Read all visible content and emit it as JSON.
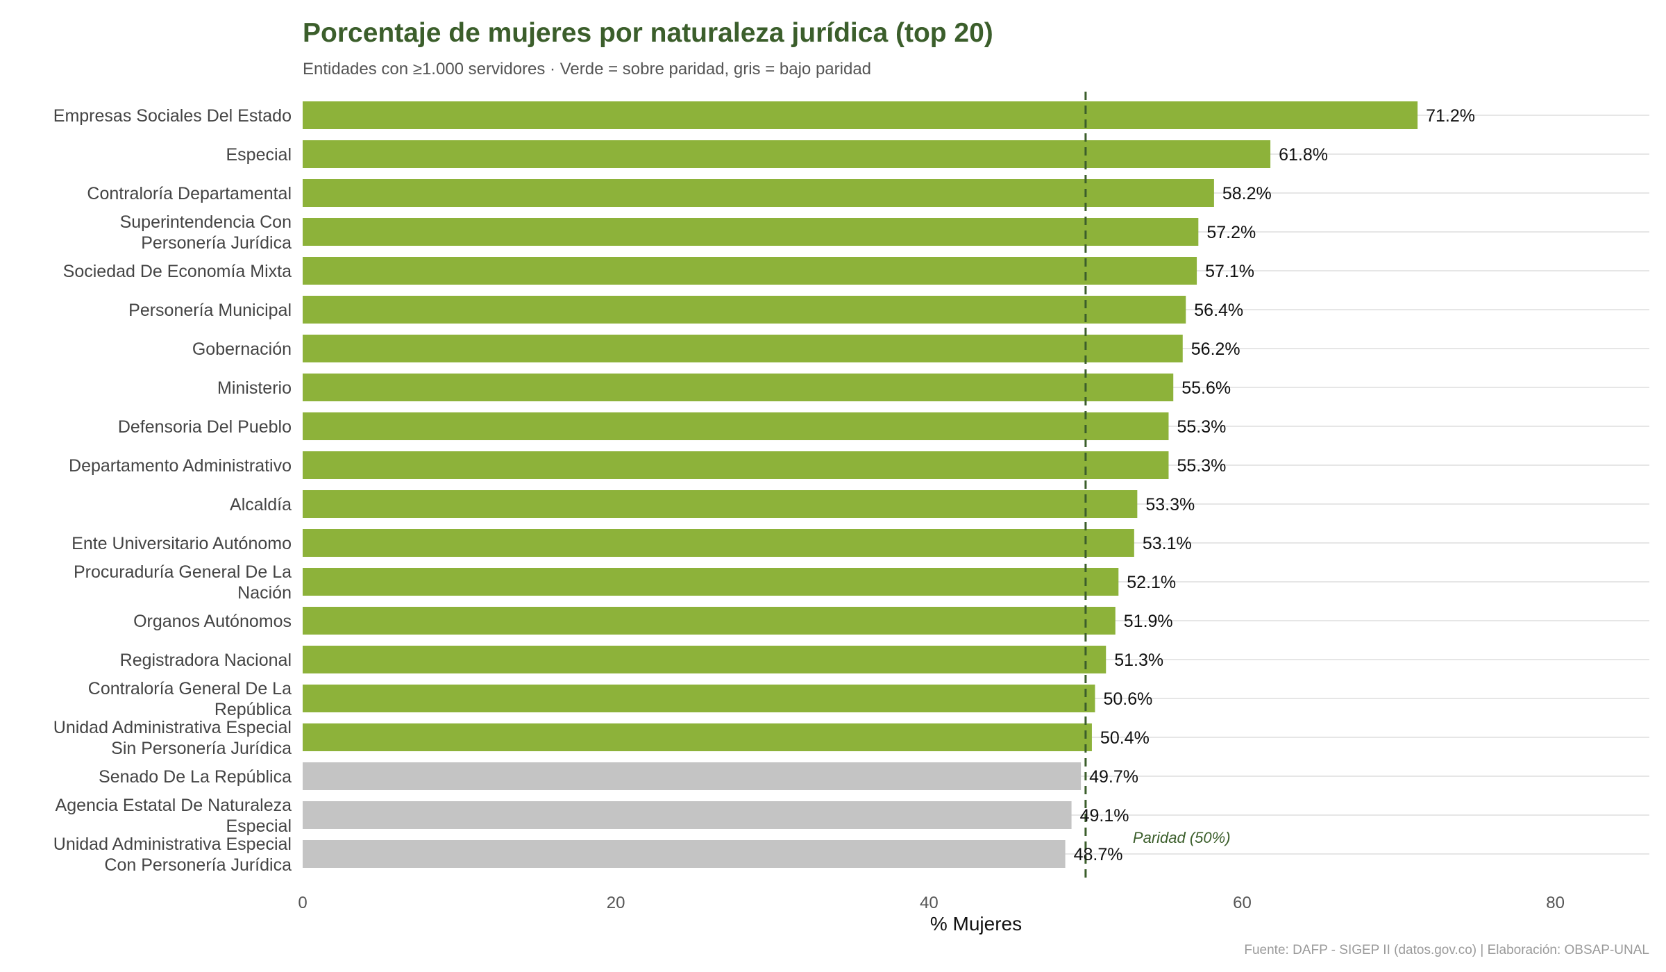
{
  "chart_data": {
    "type": "bar",
    "orientation": "horizontal",
    "title": "Porcentaje de mujeres por naturaleza jurídica (top 20)",
    "subtitle": "Entidades con ≥1.000 servidores · Verde = sobre paridad, gris = bajo paridad",
    "caption": "Fuente: DAFP - SIGEP II (datos.gov.co) | Elaboración: OBSAP-UNAL",
    "xlabel": "% Mujeres",
    "ylabel": "",
    "xlim": [
      0,
      86
    ],
    "xticks": [
      0,
      20,
      40,
      60,
      80
    ],
    "grid": "horizontal-major",
    "value_suffix": "%",
    "reference_line": {
      "value": 50,
      "label": "Paridad (50%)",
      "color": "#3b5e2b"
    },
    "colors": {
      "above": "#8db23a",
      "below": "#c4c4c4",
      "grid": "#e6e6e6"
    },
    "categories": [
      [
        "Empresas Sociales Del Estado"
      ],
      [
        "Especial"
      ],
      [
        "Contraloría Departamental"
      ],
      [
        "Superintendencia Con",
        "Personería Jurídica"
      ],
      [
        "Sociedad De Economía Mixta"
      ],
      [
        "Personería Municipal"
      ],
      [
        "Gobernación"
      ],
      [
        "Ministerio"
      ],
      [
        "Defensoria Del Pueblo"
      ],
      [
        "Departamento Administrativo"
      ],
      [
        "Alcaldía"
      ],
      [
        "Ente Universitario Autónomo"
      ],
      [
        "Procuraduría General De La",
        "Nación"
      ],
      [
        "Organos Autónomos"
      ],
      [
        "Registradora Nacional"
      ],
      [
        "Contraloría General De La",
        "República"
      ],
      [
        "Unidad Administrativa Especial",
        "Sin Personería Jurídica"
      ],
      [
        "Senado De La República"
      ],
      [
        "Agencia Estatal De Naturaleza",
        "Especial"
      ],
      [
        "Unidad Administrativa Especial",
        "Con Personería Jurídica"
      ]
    ],
    "values": [
      71.2,
      61.8,
      58.2,
      57.2,
      57.1,
      56.4,
      56.2,
      55.6,
      55.3,
      55.3,
      53.3,
      53.1,
      52.1,
      51.9,
      51.3,
      50.6,
      50.4,
      49.7,
      49.1,
      48.7
    ]
  }
}
